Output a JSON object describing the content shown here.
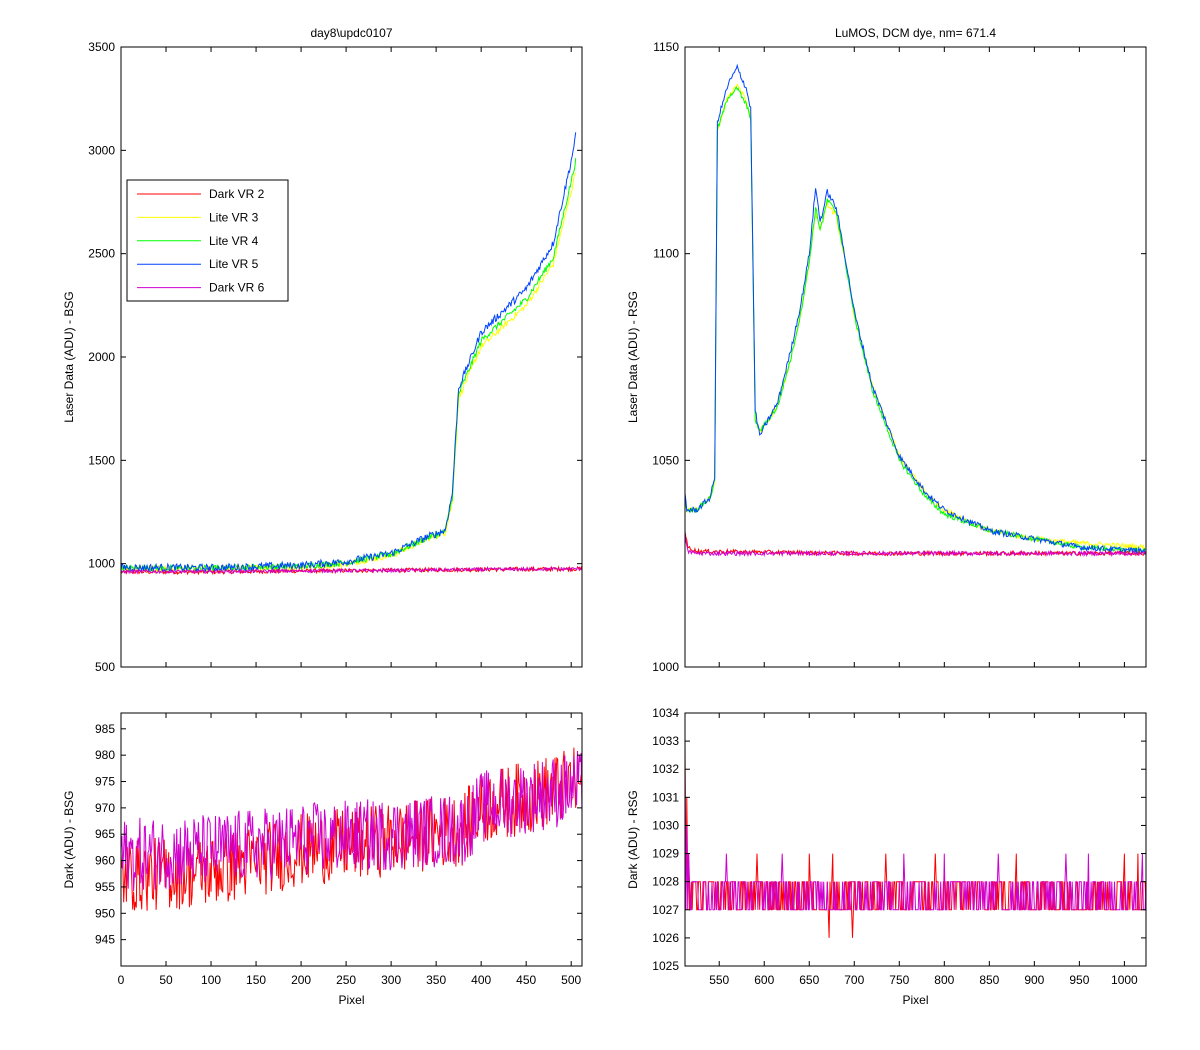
{
  "chart_data": [
    {
      "type": "line",
      "title": "day8\\updc0107",
      "xlabel": "",
      "ylabel": "Laser Data (ADU) - BSG",
      "xlim": [
        0,
        512
      ],
      "ylim": [
        500,
        3500
      ],
      "xticks": [
        0,
        50,
        100,
        150,
        200,
        250,
        300,
        350,
        400,
        450,
        500
      ],
      "yticks": [
        500,
        1000,
        1500,
        2000,
        2500,
        3000,
        3500
      ],
      "x_tick_labels_visible": false,
      "grid": false,
      "legend": "upper-left",
      "series": [
        {
          "name": "Dark VR 2",
          "color": "#ff0000",
          "points": [
            [
              0,
              960
            ],
            [
              100,
              960
            ],
            [
              200,
              965
            ],
            [
              300,
              968
            ],
            [
              400,
              972
            ],
            [
              512,
              975
            ]
          ],
          "noise": 10
        },
        {
          "name": "Lite VR 3",
          "color": "#ffff00",
          "points": [
            [
              0,
              975
            ],
            [
              100,
              975
            ],
            [
              200,
              985
            ],
            [
              250,
              1000
            ],
            [
              300,
              1040
            ],
            [
              340,
              1120
            ],
            [
              360,
              1150
            ],
            [
              368,
              1300
            ],
            [
              375,
              1800
            ],
            [
              400,
              2050
            ],
            [
              450,
              2250
            ],
            [
              480,
              2450
            ],
            [
              500,
              2800
            ],
            [
              505,
              2900
            ]
          ],
          "noise": 15
        },
        {
          "name": "Lite VR 4",
          "color": "#00ff00",
          "points": [
            [
              0,
              978
            ],
            [
              100,
              978
            ],
            [
              200,
              988
            ],
            [
              250,
              1005
            ],
            [
              300,
              1045
            ],
            [
              340,
              1125
            ],
            [
              360,
              1155
            ],
            [
              368,
              1320
            ],
            [
              375,
              1820
            ],
            [
              400,
              2080
            ],
            [
              450,
              2280
            ],
            [
              480,
              2480
            ],
            [
              500,
              2850
            ],
            [
              505,
              2950
            ]
          ],
          "noise": 15
        },
        {
          "name": "Lite VR 5",
          "color": "#0044ff",
          "points": [
            [
              0,
              982
            ],
            [
              100,
              980
            ],
            [
              200,
              992
            ],
            [
              250,
              1010
            ],
            [
              300,
              1050
            ],
            [
              340,
              1130
            ],
            [
              360,
              1160
            ],
            [
              368,
              1340
            ],
            [
              375,
              1850
            ],
            [
              400,
              2120
            ],
            [
              450,
              2330
            ],
            [
              480,
              2550
            ],
            [
              500,
              2950
            ],
            [
              505,
              3070
            ]
          ],
          "noise": 18
        },
        {
          "name": "Dark VR 6",
          "color": "#d000d0",
          "points": [
            [
              0,
              962
            ],
            [
              100,
              962
            ],
            [
              200,
              965
            ],
            [
              300,
              967
            ],
            [
              400,
              972
            ],
            [
              512,
              975
            ]
          ],
          "noise": 8
        }
      ]
    },
    {
      "type": "line",
      "title": "LuMOS, DCM dye, nm= 671.4",
      "xlabel": "",
      "ylabel": "Laser Data (ADU) - RSG",
      "xlim": [
        512,
        1024
      ],
      "ylim": [
        1000,
        1150
      ],
      "xticks": [
        550,
        600,
        650,
        700,
        750,
        800,
        850,
        900,
        950,
        1000
      ],
      "yticks": [
        1000,
        1050,
        1100,
        1150
      ],
      "x_tick_labels_visible": false,
      "grid": false,
      "series": [
        {
          "name": "Lite VR 3",
          "color": "#ffff00",
          "points": [
            [
              512,
              1041
            ],
            [
              514,
              1038
            ],
            [
              525,
              1038
            ],
            [
              540,
              1041
            ],
            [
              545,
              1045
            ],
            [
              548,
              1130
            ],
            [
              560,
              1138
            ],
            [
              570,
              1141
            ],
            [
              580,
              1137
            ],
            [
              585,
              1133
            ],
            [
              590,
              1060
            ],
            [
              595,
              1057
            ],
            [
              605,
              1060
            ],
            [
              615,
              1063
            ],
            [
              630,
              1075
            ],
            [
              640,
              1085
            ],
            [
              650,
              1098
            ],
            [
              657,
              1110
            ],
            [
              662,
              1106
            ],
            [
              665,
              1108
            ],
            [
              670,
              1112
            ],
            [
              680,
              1109
            ],
            [
              690,
              1098
            ],
            [
              700,
              1085
            ],
            [
              720,
              1068
            ],
            [
              750,
              1051
            ],
            [
              780,
              1042
            ],
            [
              800,
              1038
            ],
            [
              850,
              1033
            ],
            [
              900,
              1031
            ],
            [
              950,
              1030
            ],
            [
              1024,
              1029
            ]
          ],
          "noise": 0.6
        },
        {
          "name": "Lite VR 4",
          "color": "#00ff00",
          "points": [
            [
              512,
              1041
            ],
            [
              514,
              1038
            ],
            [
              525,
              1038
            ],
            [
              540,
              1041
            ],
            [
              545,
              1045
            ],
            [
              548,
              1130
            ],
            [
              560,
              1138
            ],
            [
              570,
              1140
            ],
            [
              580,
              1136
            ],
            [
              585,
              1133
            ],
            [
              590,
              1060
            ],
            [
              595,
              1057
            ],
            [
              605,
              1060
            ],
            [
              615,
              1063
            ],
            [
              630,
              1075
            ],
            [
              640,
              1085
            ],
            [
              650,
              1098
            ],
            [
              657,
              1111
            ],
            [
              662,
              1106
            ],
            [
              665,
              1108
            ],
            [
              670,
              1113
            ],
            [
              680,
              1110
            ],
            [
              690,
              1098
            ],
            [
              700,
              1085
            ],
            [
              720,
              1067
            ],
            [
              750,
              1050
            ],
            [
              780,
              1041
            ],
            [
              800,
              1037
            ],
            [
              850,
              1033
            ],
            [
              900,
              1031
            ],
            [
              950,
              1029
            ],
            [
              1024,
              1028
            ]
          ],
          "noise": 0.6
        },
        {
          "name": "Lite VR 5",
          "color": "#0044ff",
          "points": [
            [
              512,
              1042
            ],
            [
              514,
              1038
            ],
            [
              525,
              1038
            ],
            [
              540,
              1041
            ],
            [
              545,
              1046
            ],
            [
              548,
              1132
            ],
            [
              560,
              1141
            ],
            [
              570,
              1145
            ],
            [
              580,
              1140
            ],
            [
              585,
              1135
            ],
            [
              590,
              1062
            ],
            [
              595,
              1056
            ],
            [
              605,
              1060
            ],
            [
              615,
              1064
            ],
            [
              630,
              1077
            ],
            [
              640,
              1087
            ],
            [
              650,
              1100
            ],
            [
              657,
              1116
            ],
            [
              662,
              1108
            ],
            [
              665,
              1110
            ],
            [
              670,
              1115
            ],
            [
              680,
              1111
            ],
            [
              690,
              1099
            ],
            [
              700,
              1086
            ],
            [
              720,
              1068
            ],
            [
              750,
              1051
            ],
            [
              780,
              1042
            ],
            [
              800,
              1038
            ],
            [
              850,
              1033
            ],
            [
              900,
              1031
            ],
            [
              950,
              1029
            ],
            [
              1024,
              1028
            ]
          ],
          "noise": 0.7
        },
        {
          "name": "Dark VR 2",
          "color": "#ff0000",
          "points": [
            [
              512,
              1033
            ],
            [
              515,
              1029
            ],
            [
              525,
              1028
            ],
            [
              700,
              1027.5
            ],
            [
              1024,
              1027.5
            ]
          ],
          "noise": 0.5
        },
        {
          "name": "Dark VR 6",
          "color": "#d000d0",
          "points": [
            [
              512,
              1032
            ],
            [
              515,
              1028
            ],
            [
              525,
              1027.5
            ],
            [
              700,
              1027.5
            ],
            [
              1024,
              1027.5
            ]
          ],
          "noise": 0.5
        }
      ]
    },
    {
      "type": "line",
      "title": "",
      "xlabel": "Pixel",
      "ylabel": "Dark (ADU) - BSG",
      "xlim": [
        0,
        512
      ],
      "ylim": [
        940,
        988
      ],
      "xticks": [
        0,
        50,
        100,
        150,
        200,
        250,
        300,
        350,
        400,
        450,
        500
      ],
      "yticks": [
        945,
        950,
        955,
        960,
        965,
        970,
        975,
        980,
        985
      ],
      "grid": false,
      "series": [
        {
          "name": "Dark VR 2",
          "color": "#ff0000",
          "points": [
            [
              0,
              957
            ],
            [
              100,
              958
            ],
            [
              200,
              962
            ],
            [
              300,
              964
            ],
            [
              380,
              966
            ],
            [
              400,
              970
            ],
            [
              450,
              972
            ],
            [
              512,
              975
            ]
          ],
          "noise": 7
        },
        {
          "name": "Dark VR 6",
          "color": "#d000d0",
          "points": [
            [
              0,
              961
            ],
            [
              100,
              962
            ],
            [
              200,
              964
            ],
            [
              300,
              965
            ],
            [
              380,
              966
            ],
            [
              400,
              970
            ],
            [
              450,
              972
            ],
            [
              512,
              974
            ]
          ],
          "noise": 7
        }
      ]
    },
    {
      "type": "line",
      "title": "",
      "xlabel": "Pixel",
      "ylabel": "Dark (ADU) - RSG",
      "xlim": [
        512,
        1024
      ],
      "ylim": [
        1025,
        1034
      ],
      "xticks": [
        550,
        600,
        650,
        700,
        750,
        800,
        850,
        900,
        950,
        1000
      ],
      "yticks": [
        1025,
        1026,
        1027,
        1028,
        1029,
        1030,
        1031,
        1032,
        1033,
        1034
      ],
      "grid": false,
      "series": [
        {
          "name": "Dark VR 2",
          "color": "#ff0000",
          "levels": [
            1027,
            1028
          ],
          "start": [
            [
              512,
              1033
            ],
            [
              514,
              1031
            ],
            [
              516,
              1029
            ]
          ],
          "spikes_up": [
            [
              592,
              1029
            ],
            [
              650,
              1029
            ],
            [
              676,
              1029
            ],
            [
              735,
              1029
            ],
            [
              790,
              1029
            ],
            [
              880,
              1029
            ],
            [
              1000,
              1029
            ],
            [
              1015,
              1029
            ]
          ],
          "spikes_down": [
            [
              672,
              1026
            ],
            [
              698,
              1026
            ]
          ]
        },
        {
          "name": "Dark VR 6",
          "color": "#d000d0",
          "levels": [
            1027,
            1028
          ],
          "start": [
            [
              512,
              1032
            ],
            [
              514,
              1030
            ],
            [
              516,
              1029
            ]
          ],
          "spikes_up": [
            [
              558,
              1029
            ],
            [
              620,
              1029
            ],
            [
              755,
              1029
            ],
            [
              800,
              1029
            ],
            [
              860,
              1029
            ],
            [
              935,
              1029
            ],
            [
              960,
              1029
            ],
            [
              1020,
              1029
            ]
          ],
          "spikes_down": []
        }
      ]
    }
  ]
}
